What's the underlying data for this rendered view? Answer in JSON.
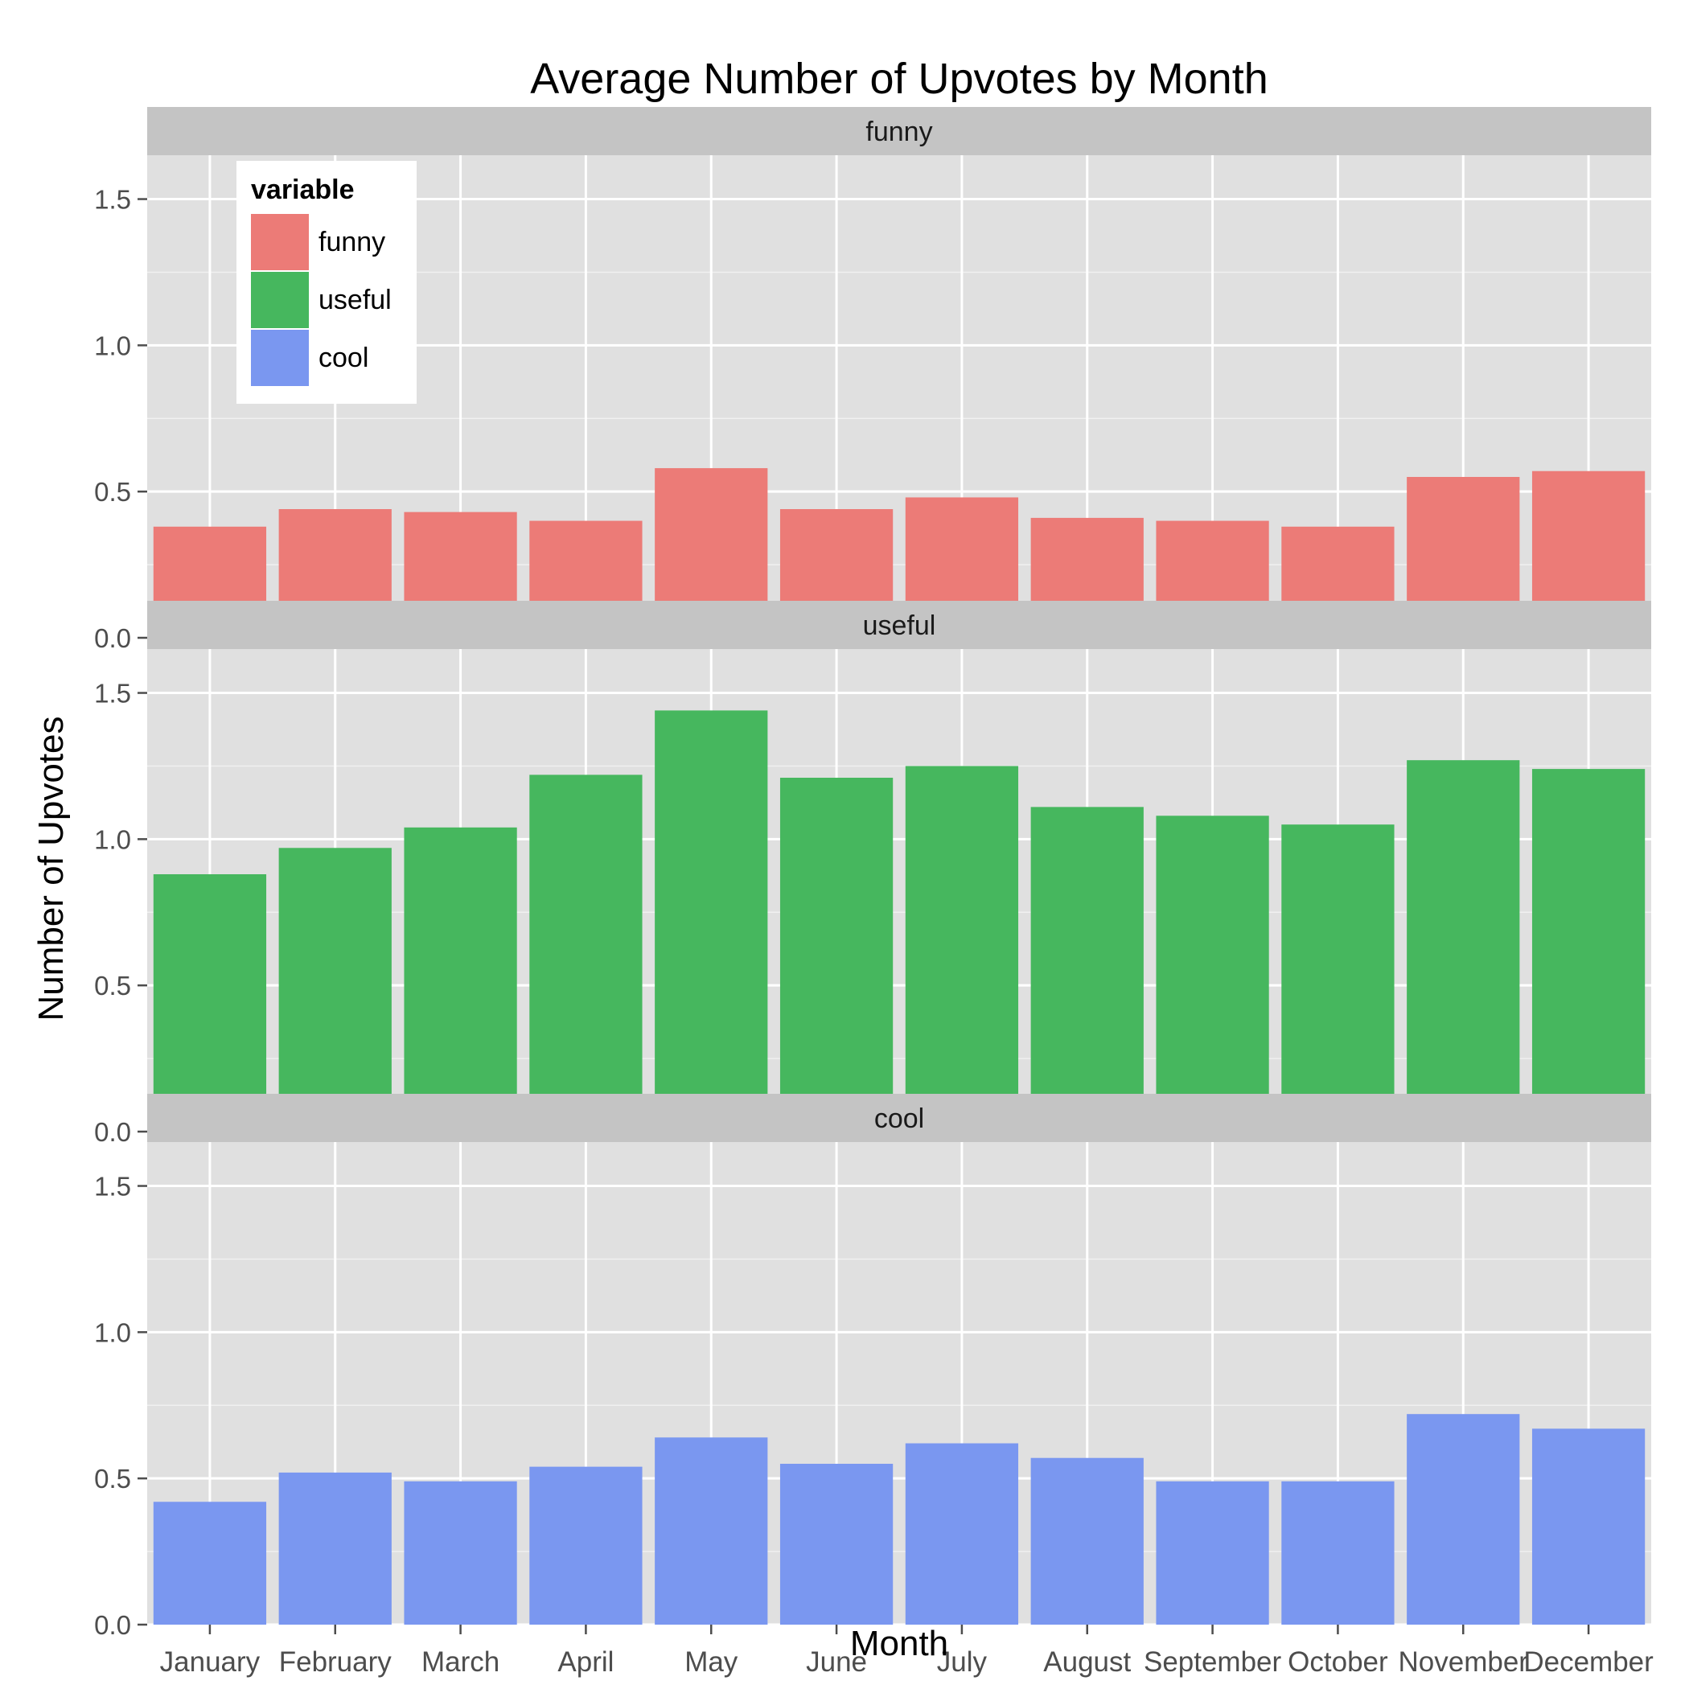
{
  "chart_data": {
    "type": "bar",
    "title": "Average Number of Upvotes by Month",
    "xlabel": "Month",
    "ylabel": "Number of Upvotes",
    "categories": [
      "January",
      "February",
      "March",
      "April",
      "May",
      "June",
      "July",
      "August",
      "September",
      "October",
      "November",
      "December"
    ],
    "ylim": [
      0,
      1.65
    ],
    "yticks": [
      "0.0",
      "0.5",
      "1.0",
      "1.5"
    ],
    "ytick_values": [
      0,
      0.5,
      1.0,
      1.5
    ],
    "facets": [
      "funny",
      "useful",
      "cool"
    ],
    "series": [
      {
        "name": "funny",
        "color": "#EC7B77",
        "values": [
          0.38,
          0.44,
          0.43,
          0.4,
          0.58,
          0.44,
          0.48,
          0.41,
          0.4,
          0.38,
          0.55,
          0.57
        ]
      },
      {
        "name": "useful",
        "color": "#46B75E",
        "values": [
          0.88,
          0.97,
          1.04,
          1.22,
          1.44,
          1.21,
          1.25,
          1.11,
          1.08,
          1.05,
          1.27,
          1.24
        ]
      },
      {
        "name": "cool",
        "color": "#7A97F0",
        "values": [
          0.42,
          0.52,
          0.49,
          0.54,
          0.64,
          0.55,
          0.62,
          0.57,
          0.49,
          0.49,
          0.72,
          0.67
        ]
      }
    ],
    "legend": {
      "title": "variable",
      "position": "top-left inside",
      "entries": [
        "funny",
        "useful",
        "cool"
      ]
    },
    "grid": true
  },
  "colors": {
    "panel_bg": "#E0E0E0",
    "strip_bg": "#C4C4C4",
    "grid_major": "#FFFFFF"
  }
}
